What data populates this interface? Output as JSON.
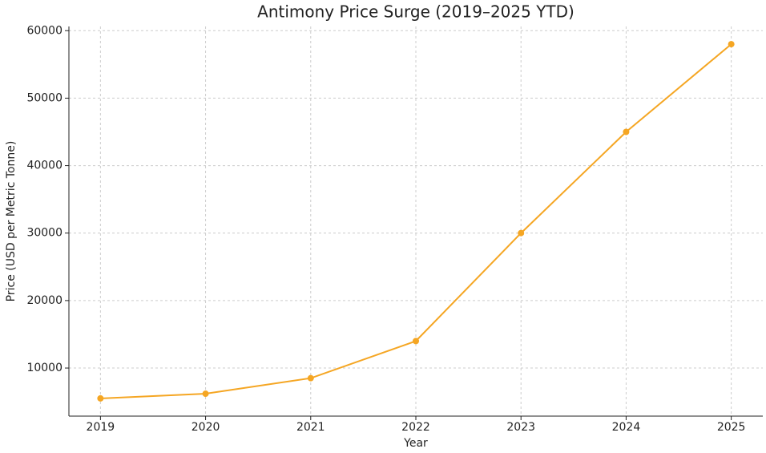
{
  "chart_data": {
    "type": "line",
    "title": "Antimony Price Surge (2019–2025 YTD)",
    "x_label": "Year",
    "y_label": "Price (USD per Metric Tonne)",
    "x": [
      2019,
      2020,
      2021,
      2022,
      2023,
      2024,
      2025
    ],
    "series": [
      {
        "name": "Price",
        "color": "#f5a623",
        "values": [
          5500,
          6200,
          8500,
          14000,
          30000,
          45000,
          58000
        ]
      }
    ],
    "xlim": [
      2018.7,
      2025.3
    ],
    "xticks": [
      2019,
      2020,
      2021,
      2022,
      2023,
      2024,
      2025
    ],
    "ylim": [
      2875,
      60625
    ],
    "yticks": [
      10000,
      20000,
      30000,
      40000,
      50000,
      60000
    ],
    "grid": true,
    "markers": true
  }
}
